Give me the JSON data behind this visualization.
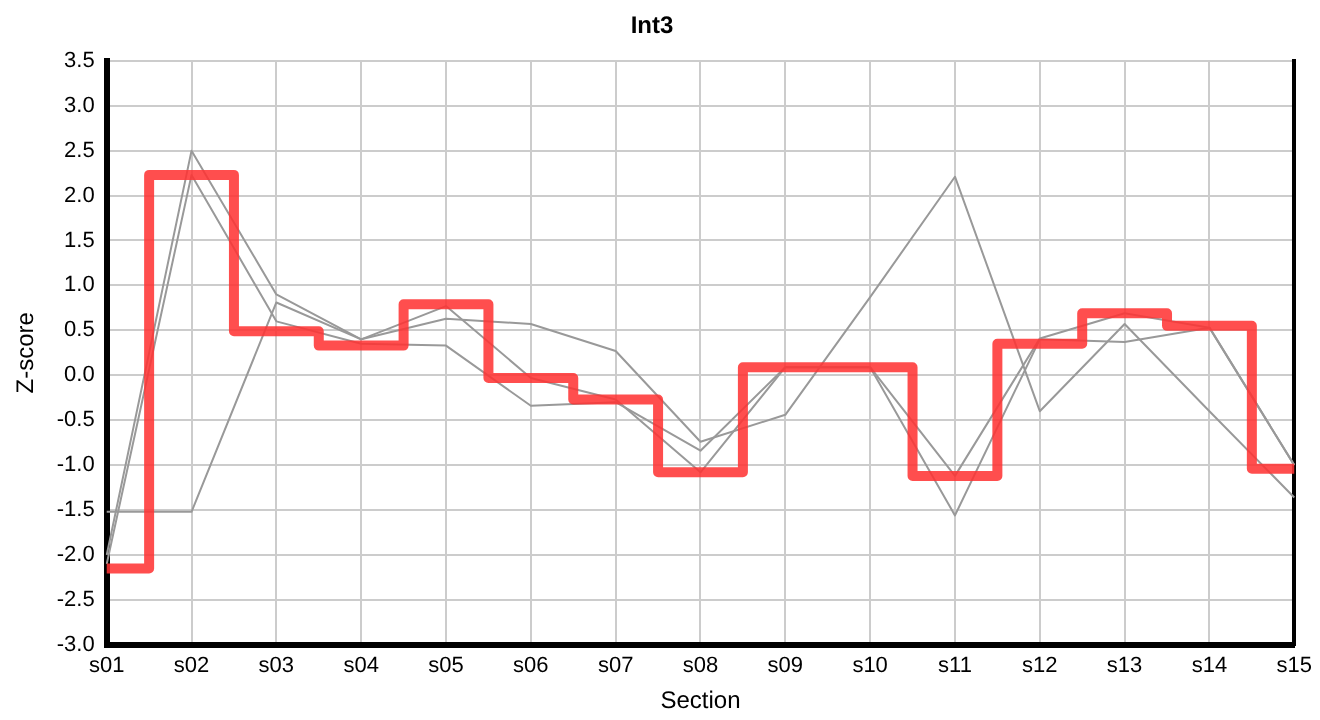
{
  "chart_data": {
    "type": "line",
    "title": "Int3",
    "xlabel": "Section",
    "ylabel": "Z-score",
    "categories": [
      "s01",
      "s02",
      "s03",
      "s04",
      "s05",
      "s06",
      "s07",
      "s08",
      "s09",
      "s10",
      "s11",
      "s12",
      "s13",
      "s14",
      "s15"
    ],
    "series": [
      {
        "color": "#999999",
        "values": [
          -1.52,
          -1.52,
          0.81,
          0.4,
          0.77,
          -0.03,
          -0.27,
          -1.08,
          0.09,
          0.09,
          -1.12,
          0.41,
          0.69,
          0.53,
          -1.0
        ]
      },
      {
        "color": "#999999",
        "values": [
          -2.1,
          2.23,
          0.6,
          0.35,
          0.33,
          -0.34,
          -0.3,
          -0.84,
          0.09,
          0.09,
          -1.56,
          0.4,
          0.37,
          0.53,
          -1.0
        ]
      },
      {
        "color": "#999999",
        "values": [
          -2.0,
          2.5,
          0.9,
          0.4,
          0.63,
          0.57,
          0.27,
          -0.74,
          -0.44,
          0.87,
          2.21,
          -0.4,
          0.57,
          -0.4,
          -1.36
        ]
      },
      {
        "type": "step",
        "color": "#ff3333",
        "values": [
          -2.15,
          2.23,
          0.49,
          0.33,
          0.79,
          -0.03,
          -0.27,
          -1.08,
          0.09,
          0.09,
          -1.12,
          0.35,
          0.69,
          0.55,
          -1.04
        ]
      }
    ],
    "ylim": [
      -3.0,
      3.5
    ],
    "yticks": [
      {
        "value": -3.0,
        "label": "-3.0"
      },
      {
        "value": -2.5,
        "label": "-2.5"
      },
      {
        "value": -2.0,
        "label": "-2.0"
      },
      {
        "value": -1.5,
        "label": "-1.5"
      },
      {
        "value": -1.0,
        "label": "-1.0"
      },
      {
        "value": -0.5,
        "label": "-0.5"
      },
      {
        "value": 0,
        "label": "0.0"
      },
      {
        "value": 0.5,
        "label": "0.5"
      },
      {
        "value": 1.0,
        "label": "1.0"
      },
      {
        "value": 1.5,
        "label": "1.5"
      },
      {
        "value": 2.0,
        "label": "2.0"
      },
      {
        "value": 2.5,
        "label": "2.5"
      },
      {
        "value": 3.0,
        "label": "3.0"
      },
      {
        "value": 3.5,
        "label": "3.5"
      }
    ],
    "grid": true,
    "legend": false,
    "marker": "none"
  }
}
